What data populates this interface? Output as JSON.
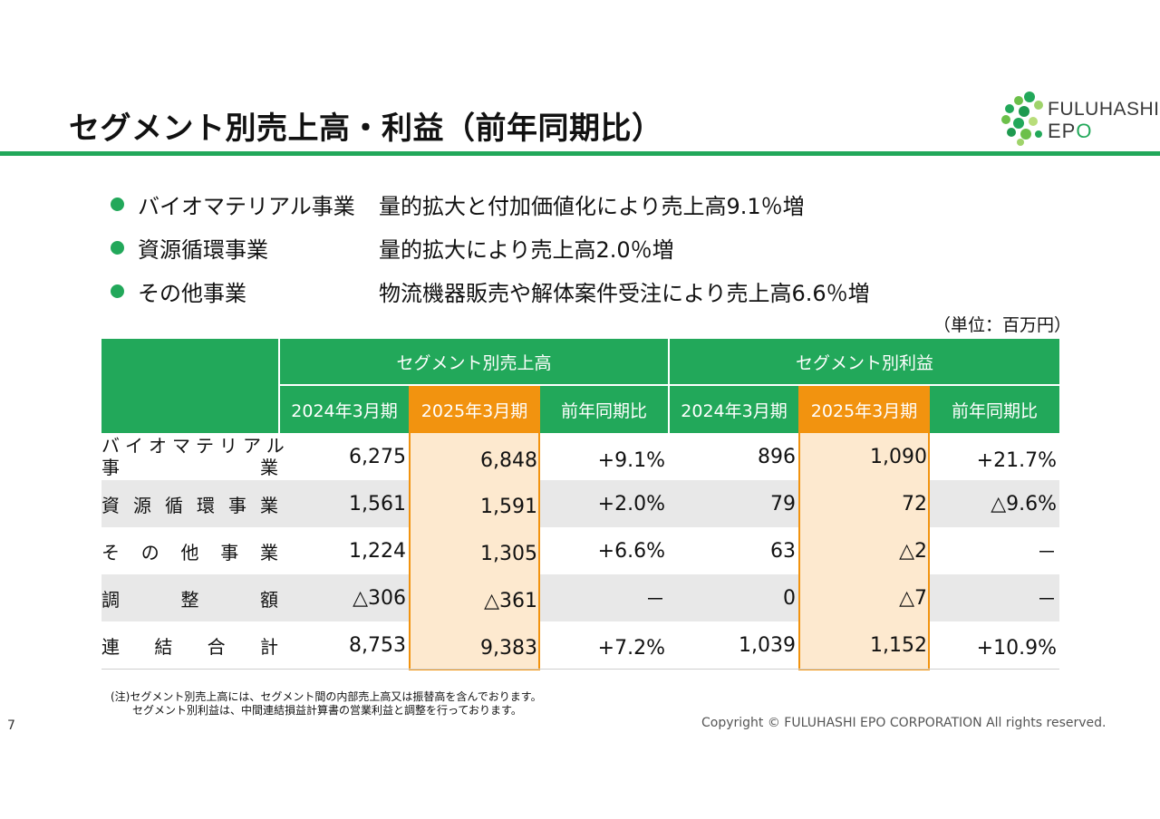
{
  "title": "セグメント別売上高・利益（前年同期比）",
  "logo": {
    "line1": "FULUHASHI",
    "line2_a": "EP",
    "line2_b": "O"
  },
  "bullets": [
    {
      "label": "バイオマテリアル事業",
      "desc": "量的拡大と付加価値化により売上高9.1％増"
    },
    {
      "label": "資源循環事業",
      "desc": "量的拡大により売上高2.0％増"
    },
    {
      "label": "その他事業",
      "desc": "物流機器販売や解体案件受注により売上高6.6％増"
    }
  ],
  "unit": "（単位：百万円）",
  "table": {
    "group_sales": "セグメント別売上高",
    "group_profit": "セグメント別利益",
    "sub_headers": [
      "2024年3月期",
      "2025年3月期",
      "前年同期比",
      "2024年3月期",
      "2025年3月期",
      "前年同期比"
    ],
    "rows": [
      {
        "label_a": "バイオマテリアル",
        "label_b": [
          "事",
          "業"
        ],
        "values": [
          "6,275",
          "6,848",
          "+9.1%",
          "896",
          "1,090",
          "+21.7%"
        ]
      },
      {
        "label_chars": [
          "資",
          "源",
          "循",
          "環",
          "事",
          "業"
        ],
        "values": [
          "1,561",
          "1,591",
          "+2.0%",
          "79",
          "72",
          "△9.6%"
        ]
      },
      {
        "label_chars": [
          "そ",
          "の",
          "他",
          "事",
          "業"
        ],
        "values": [
          "1,224",
          "1,305",
          "+6.6%",
          "63",
          "△2",
          "－"
        ]
      },
      {
        "label_chars": [
          "調",
          "整",
          "額"
        ],
        "values": [
          "△306",
          "△361",
          "－",
          "0",
          "△7",
          "－"
        ]
      },
      {
        "label_chars": [
          "連",
          "結",
          "合",
          "計"
        ],
        "values": [
          "8,753",
          "9,383",
          "+7.2%",
          "1,039",
          "1,152",
          "+10.9%"
        ]
      }
    ]
  },
  "notes": [
    "(注)セグメント別売上高には、セグメント間の内部売上高又は振替高を含んでおります。",
    "セグメント別利益は、中間連結損益計算書の営業利益と調整を行っております。"
  ],
  "page_number": "7",
  "copyright": "Copyright © FULUHASHI EPO CORPORATION All rights reserved.",
  "colors": {
    "green": "#22a85a",
    "orange": "#f2930f",
    "highlight": "#fde9cf",
    "row_grey": "#e8e8e8"
  }
}
